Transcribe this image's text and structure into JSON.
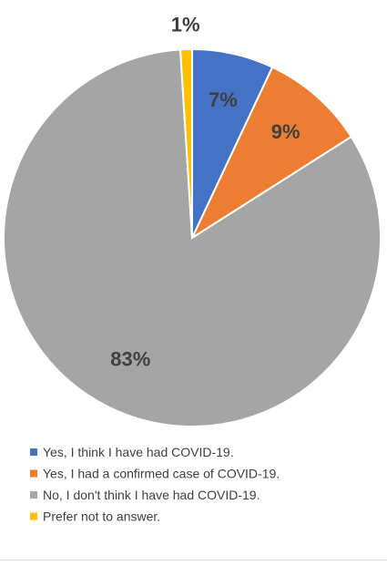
{
  "chart_data": {
    "type": "pie",
    "title": "",
    "categories": [
      "Yes, I think I have had COVID-19.",
      "Yes, I had a confirmed case of COVID-19.",
      "No, I don't think I have had COVID-19.",
      "Prefer not to answer."
    ],
    "values": [
      7,
      9,
      83,
      1
    ],
    "labels": [
      "7%",
      "9%",
      "83%",
      "1%"
    ],
    "colors": [
      "#4472C4",
      "#ED7D31",
      "#A5A5A5",
      "#FFC000"
    ],
    "legend_position": "bottom"
  }
}
